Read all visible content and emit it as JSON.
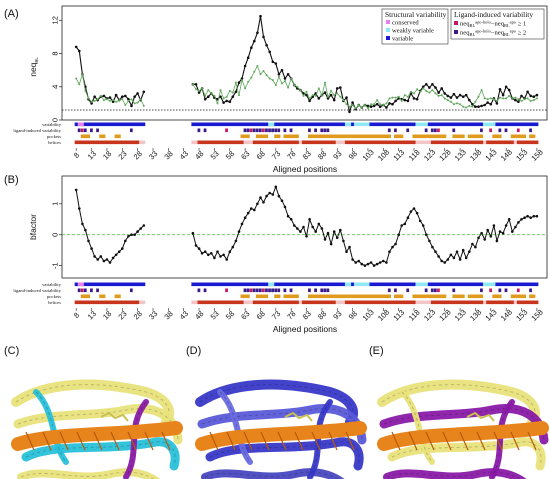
{
  "figure": {
    "panels": [
      "(A)",
      "(B)",
      "(C)",
      "(D)",
      "(E)"
    ],
    "xlabel": "Aligned positions",
    "track_labels": [
      "variability",
      "ligand-induced variability",
      "pockets",
      "helices"
    ],
    "legend1": {
      "title": "Structural variability",
      "items": [
        {
          "label": "conserved",
          "color": "#e87ff0"
        },
        {
          "label": "weakly variable",
          "color": "#8ee8f5"
        },
        {
          "label": "variable",
          "color": "#1a1ad0"
        }
      ]
    },
    "legend2": {
      "title": "Ligand-induced variability",
      "items": [
        {
          "prefix": "neq",
          "sub1": "BL",
          "sup1": "apo-holo",
          "mid": "−neq",
          "sub2": "BL",
          "sup2": "apo",
          "suffix": " ≥ 1",
          "color": "#c0186a"
        },
        {
          "prefix": "neq",
          "sub1": "BL",
          "sup1": "apo-holo",
          "mid": "−neq",
          "sub2": "BL",
          "sup2": "apo",
          "suffix": " ≥ 2",
          "color": "#3a1a8a"
        }
      ]
    },
    "colors": {
      "series_black": "#111111",
      "series_green": "#5fa85a",
      "zero_line_green": "#39c22b",
      "pocket": "#e09a1c",
      "helix": "#c8351e",
      "helix_bg": "#f2c6c6",
      "protein_yellow": "#e8e37a",
      "protein_orange": "#e8841c",
      "protein_blue": "#3838c8",
      "protein_purple": "#8a1aa8",
      "protein_cyan": "#28c0d8"
    }
  },
  "chart_data": [
    {
      "type": "line",
      "panel": "(A)",
      "title": "",
      "xlabel": "Aligned positions",
      "ylabel": "neqBL",
      "ylabel_main": "neq",
      "ylabel_sub": "BL",
      "xlim": [
        5,
        160
      ],
      "ylim": [
        0,
        13
      ],
      "xticks": [
        "8",
        "13",
        "18",
        "23",
        "28",
        "33",
        "38",
        "43",
        "48",
        "53",
        "58",
        "63",
        "68",
        "73",
        "78",
        "83",
        "88",
        "93",
        "98",
        "103",
        "108",
        "113",
        "118",
        "123",
        "128",
        "133",
        "138",
        "143",
        "148",
        "153",
        "158"
      ],
      "yticks": [
        "0",
        "4",
        "8",
        "12"
      ],
      "reference_line": 1.2,
      "grid": false,
      "gap": [
        31,
        45
      ],
      "series": [
        {
          "name": "",
          "x": [
            8,
            9,
            10,
            11,
            12,
            13,
            14,
            15,
            16,
            17,
            18,
            19,
            20,
            21,
            22,
            23,
            24,
            25,
            26,
            27,
            28,
            29,
            30,
            46,
            47,
            48,
            49,
            50,
            51,
            52,
            53,
            54,
            55,
            56,
            57,
            58,
            59,
            60,
            61,
            62,
            63,
            64,
            65,
            66,
            67,
            68,
            69,
            70,
            71,
            72,
            73,
            74,
            75,
            76,
            77,
            78,
            79,
            80,
            81,
            82,
            83,
            84,
            85,
            86,
            87,
            88,
            89,
            90,
            91,
            92,
            93,
            94,
            95,
            96,
            97,
            98,
            99,
            100,
            101,
            102,
            103,
            104,
            105,
            106,
            107,
            108,
            109,
            110,
            111,
            112,
            113,
            114,
            115,
            116,
            117,
            118,
            119,
            120,
            121,
            122,
            123,
            124,
            125,
            126,
            127,
            128,
            129,
            130,
            131,
            132,
            133,
            134,
            135,
            136,
            137,
            138,
            139,
            140,
            141,
            142,
            143,
            144,
            145,
            146,
            147,
            148,
            149,
            150,
            151,
            152,
            153,
            154,
            155,
            156,
            157,
            158
          ],
          "y": [
            8.8,
            8.3,
            5.5,
            4.0,
            2.5,
            2.0,
            2.8,
            2.4,
            2.8,
            2.9,
            2.6,
            2.7,
            2.2,
            3.0,
            2.4,
            2.8,
            2.9,
            2.5,
            1.7,
            2.8,
            3.2,
            2.4,
            3.4,
            4.3,
            4.3,
            3.3,
            3.8,
            2.5,
            2.8,
            3.2,
            2.7,
            2.5,
            2.8,
            2.1,
            2.3,
            2.2,
            2.8,
            3.4,
            4.5,
            5.0,
            6.5,
            7.5,
            8.7,
            9.5,
            10.5,
            12.5,
            10.0,
            9.0,
            8.2,
            7.0,
            6.8,
            5.5,
            6.0,
            5.0,
            5.5,
            5.0,
            4.2,
            3.8,
            3.6,
            3.2,
            3.0,
            2.3,
            2.8,
            3.2,
            2.6,
            3.0,
            3.3,
            2.6,
            3.0,
            2.4,
            3.8,
            3.9,
            2.3,
            2.7,
            1.0,
            2.1,
            1.3,
            1.8,
            1.5,
            1.8,
            1.7,
            1.6,
            1.7,
            1.9,
            1.6,
            1.8,
            1.5,
            2.0,
            1.9,
            2.3,
            2.6,
            2.5,
            2.4,
            2.3,
            3.2,
            2.6,
            2.5,
            3.5,
            4.0,
            4.3,
            3.9,
            4.3,
            3.9,
            3.3,
            3.8,
            3.2,
            2.9,
            2.7,
            3.1,
            2.7,
            3.0,
            2.8,
            3.0,
            2.4,
            1.9,
            1.6,
            1.6,
            1.7,
            1.8,
            2.1,
            1.9,
            2.6,
            2.0,
            3.7,
            3.0,
            4.0,
            3.6,
            2.6,
            2.4,
            2.2,
            2.9,
            2.6,
            3.4,
            2.9,
            2.8,
            3.0
          ]
        },
        {
          "name": "",
          "x": [
            8,
            9,
            10,
            11,
            12,
            13,
            14,
            15,
            16,
            17,
            18,
            19,
            20,
            21,
            22,
            23,
            24,
            25,
            26,
            27,
            28,
            29,
            30,
            46,
            47,
            48,
            49,
            50,
            51,
            52,
            53,
            54,
            55,
            56,
            57,
            58,
            59,
            60,
            61,
            62,
            63,
            64,
            65,
            66,
            67,
            68,
            69,
            70,
            71,
            72,
            73,
            74,
            75,
            76,
            77,
            78,
            79,
            80,
            81,
            82,
            83,
            84,
            85,
            86,
            87,
            88,
            89,
            90,
            91,
            92,
            93,
            94,
            95,
            96,
            97,
            98,
            99,
            100,
            101,
            102,
            103,
            104,
            105,
            106,
            107,
            108,
            109,
            110,
            111,
            112,
            113,
            114,
            115,
            116,
            117,
            118,
            119,
            120,
            121,
            122,
            123,
            124,
            125,
            126,
            127,
            128,
            129,
            130,
            131,
            132,
            133,
            134,
            135,
            136,
            137,
            138,
            139,
            140,
            141,
            142,
            143,
            144,
            145,
            146,
            147,
            148,
            149,
            150,
            151,
            152,
            153,
            154,
            155,
            156,
            157,
            158
          ],
          "y": [
            5.0,
            4.3,
            5.5,
            3.5,
            2.6,
            2.2,
            2.3,
            2.5,
            2.9,
            2.4,
            2.5,
            2.3,
            2.4,
            2.2,
            2.4,
            2.5,
            1.8,
            2.3,
            2.5,
            2.0,
            2.1,
            2.5,
            1.7,
            4.3,
            3.7,
            3.5,
            3.8,
            2.9,
            3.6,
            3.2,
            2.9,
            2.0,
            3.6,
            2.6,
            2.8,
            3.5,
            3.3,
            4.5,
            3.0,
            4.8,
            3.8,
            4.6,
            5.1,
            5.8,
            6.5,
            5.5,
            5.9,
            5.4,
            5.0,
            4.8,
            4.2,
            5.2,
            4.4,
            4.7,
            3.9,
            5.0,
            4.2,
            4.0,
            3.6,
            2.9,
            3.4,
            2.6,
            3.0,
            2.9,
            3.8,
            3.0,
            4.5,
            2.8,
            3.5,
            3.0,
            3.2,
            2.8,
            2.4,
            1.9,
            1.6,
            1.8,
            1.4,
            1.8,
            1.5,
            1.8,
            1.4,
            1.9,
            1.9,
            2.4,
            1.9,
            1.8,
            2.0,
            2.6,
            2.7,
            2.7,
            2.8,
            2.3,
            3.0,
            2.8,
            3.4,
            3.2,
            3.7,
            3.4,
            3.8,
            3.5,
            3.3,
            3.6,
            3.2,
            2.9,
            3.0,
            2.6,
            2.4,
            2.2,
            1.9,
            2.0,
            1.9,
            1.6,
            1.5,
            1.7,
            1.6,
            2.2,
            2.8,
            3.6,
            2.6,
            2.5,
            2.6,
            2.5,
            2.3,
            2.7,
            2.6,
            2.6,
            2.9,
            2.6,
            2.7,
            2.5,
            2.3,
            2.5,
            2.6,
            2.3,
            2.4,
            2.6
          ]
        }
      ]
    },
    {
      "type": "line",
      "panel": "(B)",
      "title": "",
      "xlabel": "Aligned positions",
      "ylabel": "bfactor",
      "xlim": [
        5,
        160
      ],
      "ylim": [
        -1.4,
        1.9
      ],
      "xticks": [
        "8",
        "13",
        "18",
        "23",
        "28",
        "33",
        "38",
        "43",
        "48",
        "53",
        "58",
        "63",
        "68",
        "73",
        "78",
        "83",
        "88",
        "93",
        "98",
        "103",
        "108",
        "113",
        "118",
        "123",
        "128",
        "133",
        "138",
        "143",
        "148",
        "153",
        "158"
      ],
      "yticks": [
        "-1",
        "0",
        "1"
      ],
      "reference_line": 0,
      "grid": false,
      "gap": [
        31,
        45
      ],
      "series": [
        {
          "name": "",
          "x": [
            8,
            9,
            10,
            11,
            12,
            13,
            14,
            15,
            16,
            17,
            18,
            19,
            20,
            21,
            22,
            23,
            24,
            25,
            26,
            27,
            28,
            29,
            30,
            46,
            47,
            48,
            49,
            50,
            51,
            52,
            53,
            54,
            55,
            56,
            57,
            58,
            59,
            60,
            61,
            62,
            63,
            64,
            65,
            66,
            67,
            68,
            69,
            70,
            71,
            72,
            73,
            74,
            75,
            76,
            77,
            78,
            79,
            80,
            81,
            82,
            83,
            84,
            85,
            86,
            87,
            88,
            89,
            90,
            91,
            92,
            93,
            94,
            95,
            96,
            97,
            98,
            99,
            100,
            101,
            102,
            103,
            104,
            105,
            106,
            107,
            108,
            109,
            110,
            111,
            112,
            113,
            114,
            115,
            116,
            117,
            118,
            119,
            120,
            121,
            122,
            123,
            124,
            125,
            126,
            127,
            128,
            129,
            130,
            131,
            132,
            133,
            134,
            135,
            136,
            137,
            138,
            139,
            140,
            141,
            142,
            143,
            144,
            145,
            146,
            147,
            148,
            149,
            150,
            151,
            152,
            153,
            154,
            155,
            156,
            157,
            158
          ],
          "y": [
            1.45,
            0.85,
            0.35,
            0.15,
            -0.2,
            -0.45,
            -0.7,
            -0.8,
            -0.7,
            -0.85,
            -0.8,
            -0.9,
            -0.75,
            -0.65,
            -0.55,
            -0.45,
            -0.2,
            -0.05,
            0.0,
            0.0,
            0.1,
            0.2,
            0.3,
            0.05,
            -0.35,
            -0.45,
            -0.6,
            -0.55,
            -0.65,
            -0.6,
            -0.75,
            -0.55,
            -0.7,
            -0.65,
            -0.8,
            -0.55,
            -0.4,
            -0.2,
            0.1,
            0.35,
            0.55,
            0.7,
            0.85,
            0.8,
            1.0,
            1.2,
            1.05,
            1.25,
            1.35,
            1.3,
            1.55,
            1.25,
            1.1,
            0.9,
            0.6,
            0.5,
            0.3,
            0.2,
            0.1,
            0.25,
            -0.05,
            0.5,
            0.25,
            0.1,
            0.35,
            0.2,
            -0.15,
            0.05,
            -0.3,
            0.1,
            -0.1,
            0.15,
            -0.2,
            -0.55,
            -0.4,
            -0.8,
            -0.9,
            -0.85,
            -0.95,
            -1.0,
            -0.95,
            -0.9,
            -1.0,
            -0.95,
            -0.9,
            -0.85,
            -0.9,
            -0.55,
            -0.4,
            -0.3,
            0.0,
            0.3,
            0.35,
            0.55,
            0.75,
            0.85,
            0.7,
            0.45,
            0.3,
            0.0,
            -0.2,
            -0.4,
            -0.55,
            -0.7,
            -0.85,
            -0.9,
            -0.8,
            -0.65,
            -0.75,
            -0.55,
            -0.8,
            -0.5,
            -0.75,
            -0.55,
            -0.3,
            -0.4,
            -0.1,
            0.05,
            -0.15,
            0.15,
            -0.05,
            0.3,
            -0.2,
            0.1,
            0.05,
            0.3,
            0.5,
            0.1,
            0.25,
            0.4,
            0.5,
            0.55,
            0.6,
            0.55,
            0.6,
            0.6
          ]
        }
      ]
    }
  ]
}
